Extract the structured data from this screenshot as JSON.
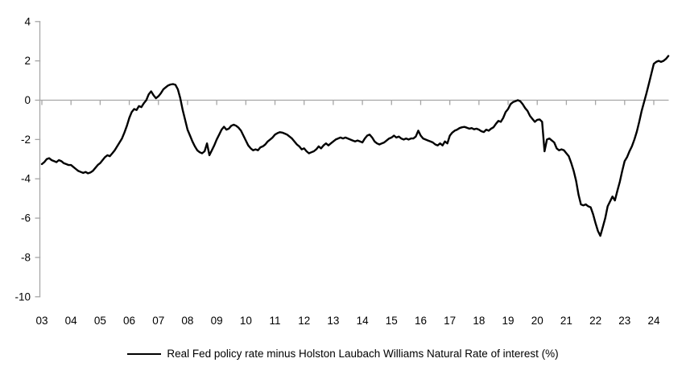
{
  "figure": {
    "background": "#ffffff",
    "series_color": "#000000",
    "axis_color": "#a6a6a6"
  },
  "legend": {
    "label": "Real Fed policy rate minus Holston Laubach Williams Natural Rate of interest (%)"
  },
  "chart_data": {
    "type": "line",
    "title": "",
    "xlabel": "",
    "ylabel": "",
    "ylim": [
      -10,
      4
    ],
    "y_ticks": [
      "4",
      "2",
      "0",
      "-2",
      "-4",
      "-6",
      "-8",
      "-10"
    ],
    "y_tick_values": [
      4,
      2,
      0,
      -2,
      -4,
      -6,
      -8,
      -10
    ],
    "x_tick_labels": [
      "03",
      "04",
      "05",
      "06",
      "07",
      "08",
      "09",
      "10",
      "11",
      "12",
      "13",
      "14",
      "15",
      "16",
      "17",
      "18",
      "19",
      "20",
      "21",
      "22",
      "23",
      "24"
    ],
    "x_tick_years": [
      2003,
      2004,
      2005,
      2006,
      2007,
      2008,
      2009,
      2010,
      2011,
      2012,
      2013,
      2014,
      2015,
      2016,
      2017,
      2018,
      2019,
      2020,
      2021,
      2022,
      2023,
      2024
    ],
    "grid": false,
    "zero_line": true,
    "legend_position": "bottom",
    "series": [
      {
        "name": "Real Fed policy rate minus Holston Laubach Williams Natural Rate of interest (%)",
        "frequency": "monthly",
        "x_start": "2003-01",
        "x_end": "2024-07",
        "values": [
          -3.25,
          -3.15,
          -3.0,
          -2.95,
          -3.05,
          -3.1,
          -3.15,
          -3.05,
          -3.1,
          -3.2,
          -3.25,
          -3.3,
          -3.3,
          -3.4,
          -3.5,
          -3.6,
          -3.65,
          -3.7,
          -3.65,
          -3.72,
          -3.68,
          -3.6,
          -3.45,
          -3.3,
          -3.2,
          -3.05,
          -2.9,
          -2.8,
          -2.85,
          -2.7,
          -2.55,
          -2.35,
          -2.15,
          -1.95,
          -1.65,
          -1.3,
          -0.9,
          -0.6,
          -0.45,
          -0.5,
          -0.3,
          -0.35,
          -0.15,
          0.0,
          0.3,
          0.45,
          0.25,
          0.1,
          0.2,
          0.35,
          0.55,
          0.65,
          0.75,
          0.8,
          0.82,
          0.78,
          0.55,
          0.1,
          -0.5,
          -1.0,
          -1.5,
          -1.8,
          -2.1,
          -2.35,
          -2.55,
          -2.65,
          -2.7,
          -2.6,
          -2.2,
          -2.8,
          -2.55,
          -2.3,
          -2.0,
          -1.75,
          -1.5,
          -1.35,
          -1.5,
          -1.45,
          -1.3,
          -1.25,
          -1.3,
          -1.4,
          -1.55,
          -1.8,
          -2.05,
          -2.3,
          -2.45,
          -2.55,
          -2.5,
          -2.55,
          -2.4,
          -2.35,
          -2.25,
          -2.1,
          -2.0,
          -1.9,
          -1.75,
          -1.68,
          -1.63,
          -1.65,
          -1.7,
          -1.75,
          -1.85,
          -1.95,
          -2.1,
          -2.25,
          -2.35,
          -2.5,
          -2.45,
          -2.6,
          -2.7,
          -2.65,
          -2.6,
          -2.5,
          -2.35,
          -2.45,
          -2.3,
          -2.2,
          -2.3,
          -2.2,
          -2.1,
          -2.0,
          -1.95,
          -1.9,
          -1.95,
          -1.9,
          -1.95,
          -2.0,
          -2.05,
          -2.1,
          -2.05,
          -2.1,
          -2.15,
          -1.95,
          -1.8,
          -1.75,
          -1.9,
          -2.1,
          -2.2,
          -2.25,
          -2.2,
          -2.15,
          -2.05,
          -1.95,
          -1.9,
          -1.8,
          -1.9,
          -1.85,
          -1.95,
          -2.0,
          -1.95,
          -2.0,
          -1.95,
          -1.95,
          -1.85,
          -1.55,
          -1.8,
          -1.95,
          -2.0,
          -2.05,
          -2.1,
          -2.15,
          -2.25,
          -2.3,
          -2.2,
          -2.3,
          -2.1,
          -2.2,
          -1.8,
          -1.65,
          -1.55,
          -1.5,
          -1.42,
          -1.38,
          -1.36,
          -1.4,
          -1.45,
          -1.42,
          -1.48,
          -1.45,
          -1.5,
          -1.58,
          -1.62,
          -1.5,
          -1.55,
          -1.45,
          -1.38,
          -1.2,
          -1.05,
          -1.1,
          -0.9,
          -0.6,
          -0.45,
          -0.2,
          -0.1,
          -0.05,
          0.0,
          -0.05,
          -0.2,
          -0.4,
          -0.55,
          -0.8,
          -0.95,
          -1.1,
          -1.0,
          -0.98,
          -1.1,
          -2.6,
          -2.0,
          -1.95,
          -2.05,
          -2.15,
          -2.45,
          -2.55,
          -2.5,
          -2.55,
          -2.7,
          -2.85,
          -3.2,
          -3.6,
          -4.1,
          -4.8,
          -5.3,
          -5.35,
          -5.3,
          -5.4,
          -5.45,
          -5.8,
          -6.25,
          -6.65,
          -6.9,
          -6.45,
          -6.0,
          -5.4,
          -5.15,
          -4.9,
          -5.1,
          -4.6,
          -4.15,
          -3.6,
          -3.1,
          -2.9,
          -2.6,
          -2.35,
          -2.0,
          -1.6,
          -1.1,
          -0.55,
          -0.1,
          0.35,
          0.85,
          1.35,
          1.85,
          1.95,
          2.0,
          1.95,
          2.0,
          2.1,
          2.25
        ]
      }
    ]
  }
}
